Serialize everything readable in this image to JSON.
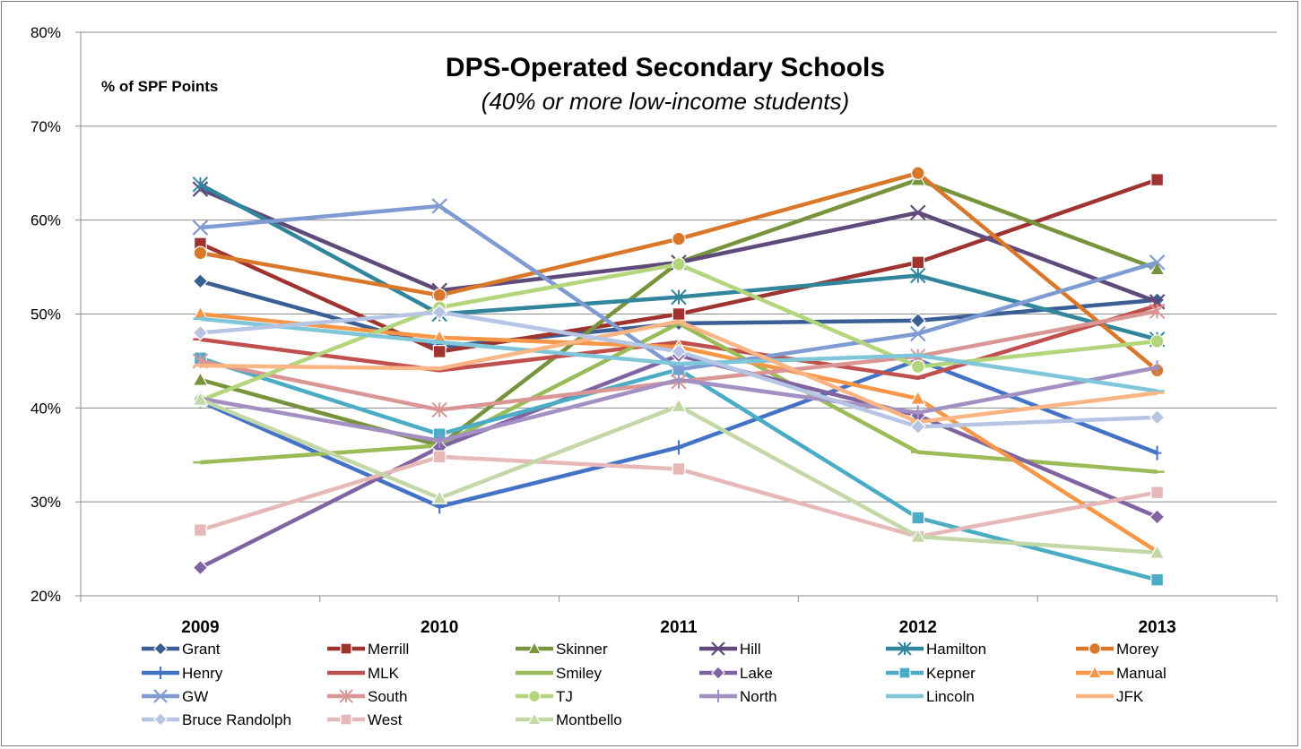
{
  "chart_data": {
    "type": "line",
    "title": "DPS-Operated Secondary Schools",
    "subtitle": "(40% or more low-income students)",
    "ylabel": "% of SPF Points",
    "xlabel": "",
    "categories": [
      "2009",
      "2010",
      "2011",
      "2012",
      "2013"
    ],
    "ylim": [
      20,
      80
    ],
    "yticks": [
      "20%",
      "30%",
      "40%",
      "50%",
      "60%",
      "70%",
      "80%"
    ],
    "grid": true,
    "legend_position": "bottom",
    "series": [
      {
        "name": "Grant",
        "color": "#3A5F95",
        "marker": "diamond",
        "values": [
          53.5,
          46.5,
          49.0,
          49.3,
          51.5
        ]
      },
      {
        "name": "Merrill",
        "color": "#9E3330",
        "marker": "square",
        "values": [
          57.5,
          46.0,
          50.0,
          55.5,
          64.3
        ]
      },
      {
        "name": "Skinner",
        "color": "#77933C",
        "marker": "triangle",
        "values": [
          43.0,
          36.0,
          55.5,
          64.3,
          54.8
        ]
      },
      {
        "name": "Hill",
        "color": "#5F4A7B",
        "marker": "x",
        "values": [
          63.3,
          52.5,
          55.5,
          60.8,
          51.3
        ]
      },
      {
        "name": "Hamilton",
        "color": "#31859C",
        "marker": "star",
        "values": [
          63.8,
          50.0,
          51.8,
          54.1,
          47.3
        ]
      },
      {
        "name": "Morey",
        "color": "#D9772B",
        "marker": "circle",
        "values": [
          56.5,
          52.0,
          58.0,
          65.0,
          44.0
        ]
      },
      {
        "name": "Henry",
        "color": "#4472C4",
        "marker": "plus",
        "values": [
          40.7,
          29.5,
          35.8,
          45.1,
          35.2
        ]
      },
      {
        "name": "MLK",
        "color": "#C0504D",
        "marker": "dash",
        "values": [
          47.3,
          44.0,
          47.0,
          43.2,
          50.9
        ]
      },
      {
        "name": "Smiley",
        "color": "#9BBB59",
        "marker": "dash",
        "values": [
          34.2,
          36.0,
          49.0,
          35.3,
          33.2
        ]
      },
      {
        "name": "Lake",
        "color": "#8064A2",
        "marker": "diamond",
        "values": [
          23.0,
          35.8,
          45.6,
          39.2,
          28.4
        ]
      },
      {
        "name": "Kepner",
        "color": "#4BACC6",
        "marker": "square",
        "values": [
          45.3,
          37.2,
          44.1,
          28.3,
          21.7
        ]
      },
      {
        "name": "Manual",
        "color": "#F79646",
        "marker": "triangle",
        "values": [
          50.0,
          47.5,
          46.5,
          41.0,
          24.7
        ]
      },
      {
        "name": "GW",
        "color": "#7F9BD1",
        "marker": "x",
        "values": [
          59.2,
          61.5,
          44.1,
          47.9,
          55.5
        ]
      },
      {
        "name": "South",
        "color": "#D99694",
        "marker": "star",
        "values": [
          45.0,
          39.8,
          42.8,
          45.5,
          50.3
        ]
      },
      {
        "name": "TJ",
        "color": "#B3D57C",
        "marker": "circle",
        "values": [
          40.8,
          50.7,
          55.3,
          44.4,
          47.1
        ]
      },
      {
        "name": "North",
        "color": "#A48FC2",
        "marker": "plus",
        "values": [
          41.0,
          36.5,
          43.0,
          39.5,
          44.3
        ]
      },
      {
        "name": "Lincoln",
        "color": "#7FC6DA",
        "marker": "dash",
        "values": [
          49.5,
          47.0,
          44.7,
          45.6,
          41.8
        ]
      },
      {
        "name": "JFK",
        "color": "#FAB584",
        "marker": "dash",
        "values": [
          44.5,
          44.2,
          49.2,
          38.5,
          41.6
        ]
      },
      {
        "name": "Bruce Randolph",
        "color": "#B6C5E4",
        "marker": "diamond",
        "values": [
          48.0,
          50.2,
          46.0,
          38.0,
          39.0
        ]
      },
      {
        "name": "West",
        "color": "#E6B9B8",
        "marker": "square",
        "values": [
          27.0,
          34.8,
          33.5,
          26.3,
          31.0
        ]
      },
      {
        "name": "Montbello",
        "color": "#C4D8A7",
        "marker": "triangle",
        "values": [
          40.9,
          30.4,
          40.2,
          26.3,
          24.6
        ]
      }
    ]
  }
}
